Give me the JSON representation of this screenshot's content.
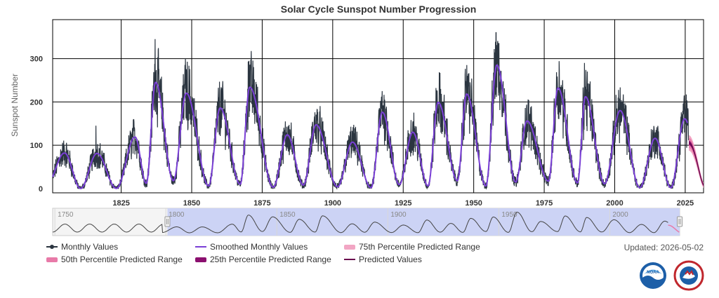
{
  "chart_data": {
    "type": "line",
    "title": "Solar Cycle Sunspot Number Progression",
    "ylabel": "Sunspot Number",
    "xlabel": "",
    "x_ticks": [
      "1825",
      "1850",
      "1875",
      "1900",
      "1925",
      "1950",
      "1975",
      "2000",
      "2025"
    ],
    "y_ticks": [
      "0",
      "100",
      "200",
      "300"
    ],
    "xlim": [
      1800.7,
      2031.5
    ],
    "ylim": [
      -10,
      390
    ],
    "grid": true,
    "legend_placement": "bottom",
    "series": [
      {
        "name": "Monthly Values",
        "color": "#2b3540",
        "style": "line-marker"
      },
      {
        "name": "Smoothed Monthly Values",
        "color": "#7a3fd6",
        "style": "line"
      },
      {
        "name": "75th Percentile Predicted Range",
        "color": "#f2a6c4",
        "style": "area"
      },
      {
        "name": "50th Percentile Predicted Range",
        "color": "#e87aa8",
        "style": "area"
      },
      {
        "name": "25th Percentile Predicted Range",
        "color": "#8b0f6f",
        "style": "area"
      },
      {
        "name": "Predicted Values",
        "color": "#6b0a4f",
        "style": "line"
      }
    ],
    "cycles_smoothed": [
      {
        "start": 1798.3,
        "min": 4,
        "peak_year": 1804.9,
        "peak": 82
      },
      {
        "start": 1810.6,
        "min": 0,
        "peak_year": 1816.4,
        "peak": 81
      },
      {
        "start": 1823.3,
        "min": 0.2,
        "peak_year": 1829.9,
        "peak": 119
      },
      {
        "start": 1833.9,
        "min": 12,
        "peak_year": 1837.2,
        "peak": 245
      },
      {
        "start": 1843.5,
        "min": 18,
        "peak_year": 1848.1,
        "peak": 220
      },
      {
        "start": 1856.0,
        "min": 6,
        "peak_year": 1860.1,
        "peak": 186
      },
      {
        "start": 1867.2,
        "min": 10,
        "peak_year": 1870.6,
        "peak": 234
      },
      {
        "start": 1878.9,
        "min": 3,
        "peak_year": 1883.9,
        "peak": 124
      },
      {
        "start": 1889.6,
        "min": 8,
        "peak_year": 1894.1,
        "peak": 147
      },
      {
        "start": 1901.7,
        "min": 4,
        "peak_year": 1907.0,
        "peak": 107
      },
      {
        "start": 1913.6,
        "min": 2,
        "peak_year": 1917.6,
        "peak": 176
      },
      {
        "start": 1923.6,
        "min": 9,
        "peak_year": 1928.4,
        "peak": 130
      },
      {
        "start": 1933.8,
        "min": 6,
        "peak_year": 1937.4,
        "peak": 199
      },
      {
        "start": 1944.2,
        "min": 18,
        "peak_year": 1947.5,
        "peak": 218
      },
      {
        "start": 1954.3,
        "min": 6,
        "peak_year": 1958.2,
        "peak": 285
      },
      {
        "start": 1964.9,
        "min": 15,
        "peak_year": 1968.9,
        "peak": 156
      },
      {
        "start": 1976.5,
        "min": 17,
        "peak_year": 1979.9,
        "peak": 232
      },
      {
        "start": 1986.8,
        "min": 13,
        "peak_year": 1989.6,
        "peak": 212
      },
      {
        "start": 1996.4,
        "min": 11,
        "peak_year": 2001.9,
        "peak": 180
      },
      {
        "start": 2008.9,
        "min": 2,
        "peak_year": 2014.3,
        "peak": 116
      },
      {
        "start": 2019.9,
        "min": 2,
        "peak_year": 2024.8,
        "peak": 161
      }
    ],
    "monthly_peaks": [
      {
        "year": 1816.0,
        "value": 145
      },
      {
        "year": 1837.0,
        "value": 345
      },
      {
        "year": 1847.8,
        "value": 300
      },
      {
        "year": 1870.3,
        "value": 295
      },
      {
        "year": 1917.5,
        "value": 225
      },
      {
        "year": 1947.5,
        "value": 285
      },
      {
        "year": 1957.9,
        "value": 360
      },
      {
        "year": 1989.3,
        "value": 290
      },
      {
        "year": 2024.6,
        "value": 215
      }
    ],
    "prediction": {
      "start": 2026.3,
      "end": 2031.5,
      "start_value": 105,
      "end_value": 8
    },
    "navigator": {
      "x_ticks": [
        "1750",
        "1800",
        "1850",
        "1900",
        "1950",
        "2000"
      ],
      "range": [
        1749,
        2031.5
      ],
      "selected": [
        1800.7,
        2031.5
      ]
    }
  },
  "updated_text": "Updated: 2026-05-02",
  "logos": {
    "noaa": "noaa-logo",
    "nws": "nws-logo"
  }
}
